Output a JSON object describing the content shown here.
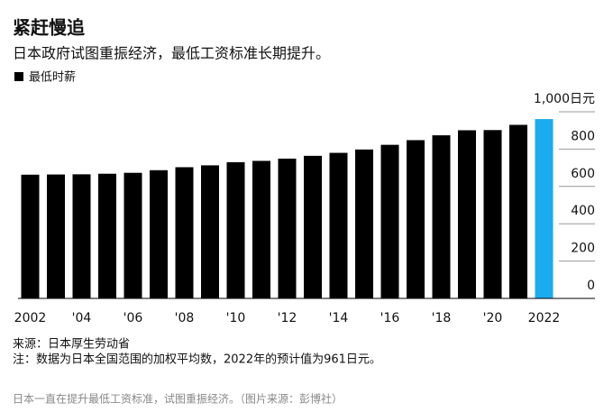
{
  "chart_data": {
    "type": "bar",
    "title": "紧赶慢追",
    "subtitle": "日本政府试图重振经济，最低工资标准长期提升。",
    "categories": [
      "2002",
      null,
      "'04",
      null,
      "'06",
      null,
      "'08",
      null,
      "'10",
      null,
      "'12",
      null,
      "'14",
      null,
      "'16",
      null,
      "'18",
      null,
      "'20",
      null,
      "2022"
    ],
    "series": [
      {
        "name": "最低时薪",
        "color": "#000000",
        "values": [
          663,
          664,
          665,
          668,
          673,
          687,
          703,
          713,
          730,
          737,
          749,
          764,
          780,
          798,
          823,
          848,
          874,
          901,
          902,
          930,
          961
        ]
      }
    ],
    "bar_colors": [
      "#000000",
      "#000000",
      "#000000",
      "#000000",
      "#000000",
      "#000000",
      "#000000",
      "#000000",
      "#000000",
      "#000000",
      "#000000",
      "#000000",
      "#000000",
      "#000000",
      "#000000",
      "#000000",
      "#000000",
      "#000000",
      "#000000",
      "#000000",
      "#1aabf0"
    ],
    "ylim": [
      0,
      1000
    ],
    "yticks": [
      0,
      200,
      400,
      600,
      800,
      {
        "value": 1000,
        "label": "1,000日元"
      }
    ],
    "grid": true,
    "source": "来源：日本厚生劳动省",
    "note": "注：数据为日本全国范围的加权平均数，2022年的预计值为961日元。",
    "caption": "日本一直在提升最低工资标准，试图重振经济。（图片来源：彭博社）"
  }
}
